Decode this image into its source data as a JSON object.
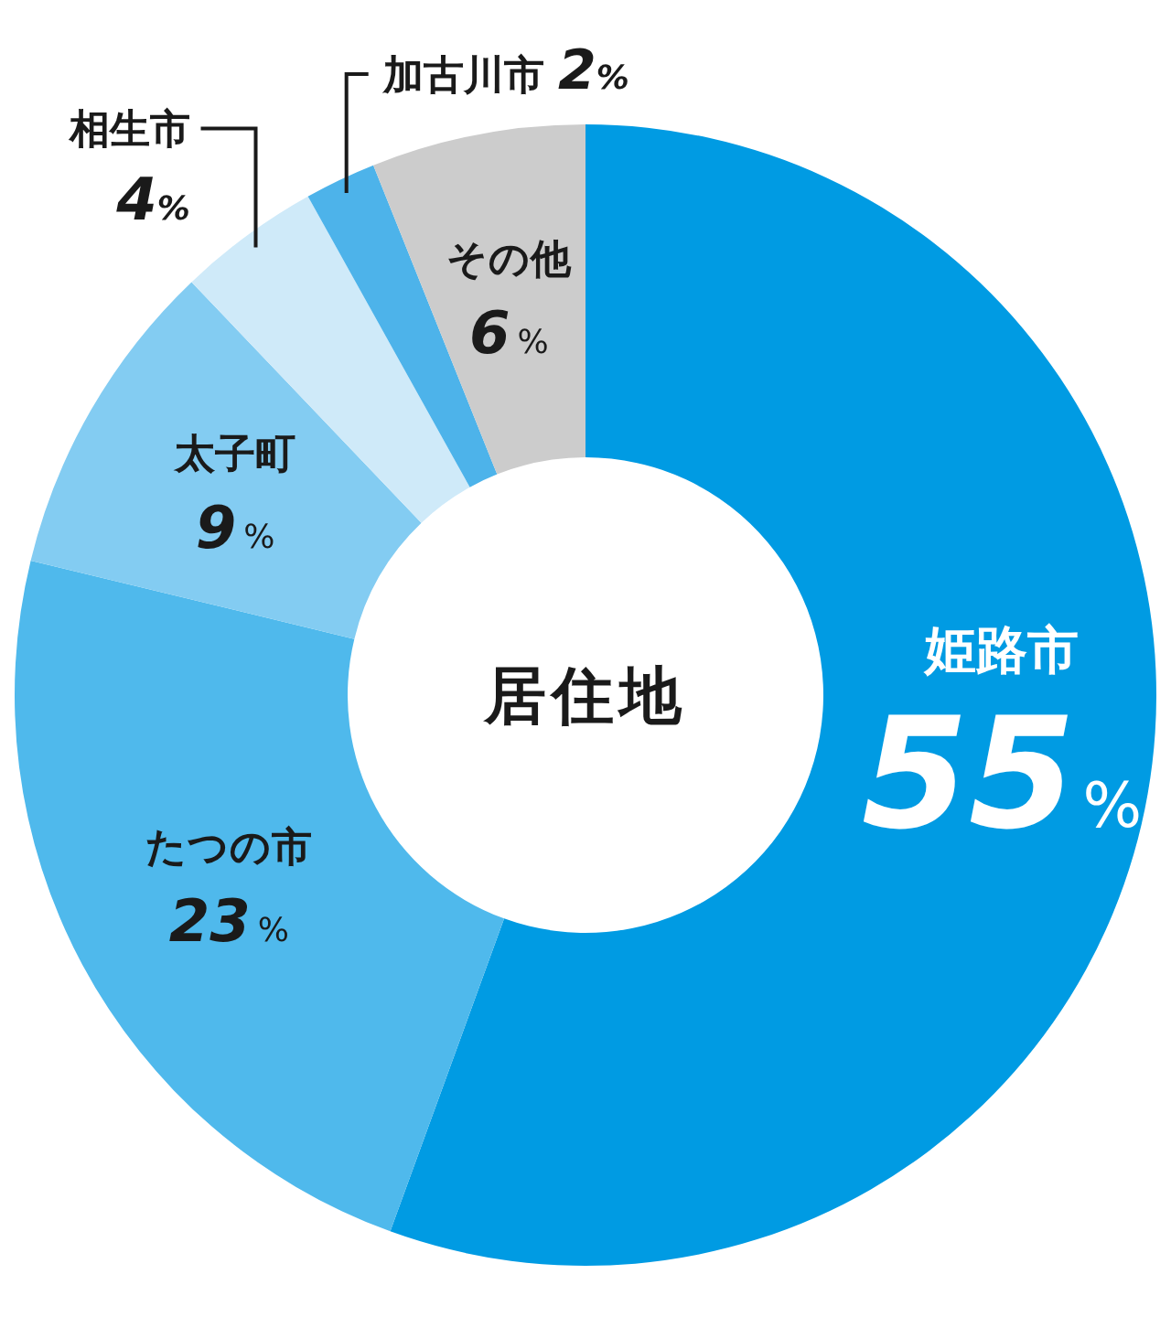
{
  "chart_data": {
    "type": "donut",
    "title": "居住地",
    "categories": [
      "姫路市",
      "たつの市",
      "太子町",
      "相生市",
      "加古川市",
      "その他"
    ],
    "values": [
      55,
      23,
      9,
      4,
      2,
      6
    ],
    "colors": [
      "#009be3",
      "#4fb9ec",
      "#83ccf2",
      "#cfeaf9",
      "#4db3ea",
      "#cccccc"
    ],
    "value_labels": [
      "55%",
      "23%",
      "9%",
      "4%",
      "2%",
      "6%"
    ]
  }
}
